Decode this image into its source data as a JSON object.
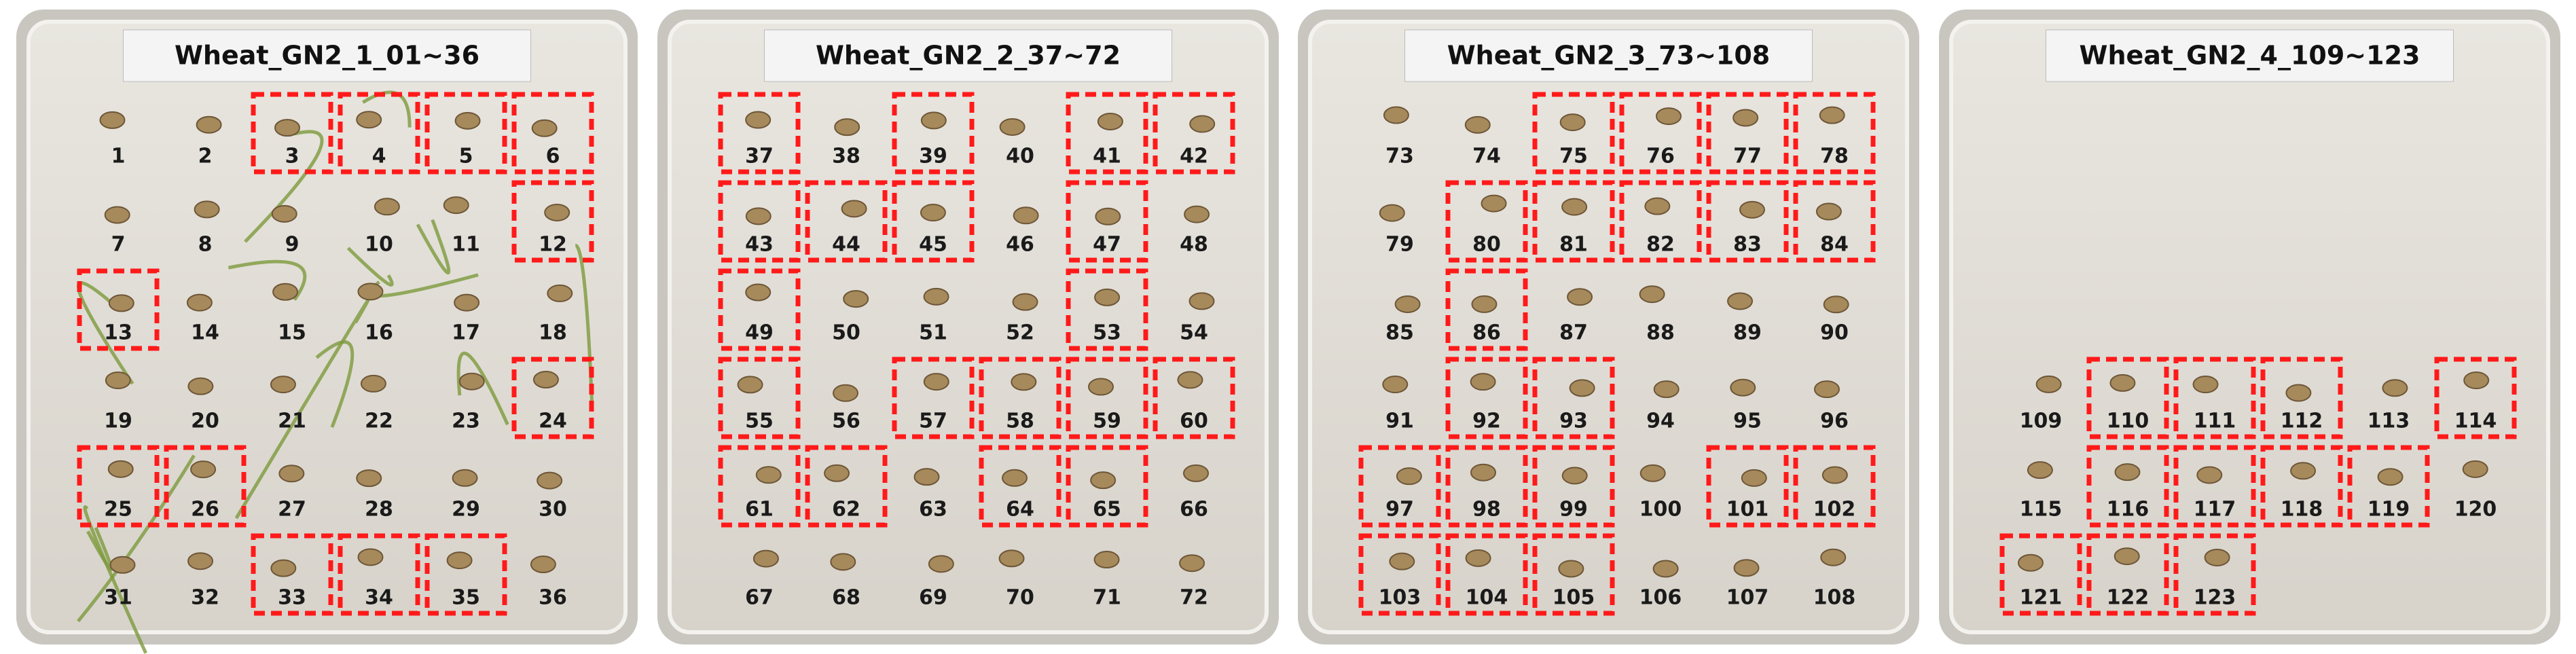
{
  "panels": [
    {
      "title": "Wheat_GN2_1_01~36",
      "cells": [
        {
          "label": 1,
          "marked": false
        },
        {
          "label": 2,
          "marked": false
        },
        {
          "label": 3,
          "marked": true
        },
        {
          "label": 4,
          "marked": true
        },
        {
          "label": 5,
          "marked": true
        },
        {
          "label": 6,
          "marked": true
        },
        {
          "label": 7,
          "marked": false
        },
        {
          "label": 8,
          "marked": false
        },
        {
          "label": 9,
          "marked": false
        },
        {
          "label": 10,
          "marked": false
        },
        {
          "label": 11,
          "marked": false
        },
        {
          "label": 12,
          "marked": true
        },
        {
          "label": 13,
          "marked": true
        },
        {
          "label": 14,
          "marked": false
        },
        {
          "label": 15,
          "marked": false
        },
        {
          "label": 16,
          "marked": false
        },
        {
          "label": 17,
          "marked": false
        },
        {
          "label": 18,
          "marked": false
        },
        {
          "label": 19,
          "marked": false
        },
        {
          "label": 20,
          "marked": false
        },
        {
          "label": 21,
          "marked": false
        },
        {
          "label": 22,
          "marked": false
        },
        {
          "label": 23,
          "marked": false
        },
        {
          "label": 24,
          "marked": true
        },
        {
          "label": 25,
          "marked": true
        },
        {
          "label": 26,
          "marked": true
        },
        {
          "label": 27,
          "marked": false
        },
        {
          "label": 28,
          "marked": false
        },
        {
          "label": 29,
          "marked": false
        },
        {
          "label": 30,
          "marked": false
        },
        {
          "label": 31,
          "marked": false
        },
        {
          "label": 32,
          "marked": false
        },
        {
          "label": 33,
          "marked": true
        },
        {
          "label": 34,
          "marked": true
        },
        {
          "label": 35,
          "marked": true
        },
        {
          "label": 36,
          "marked": false
        }
      ]
    },
    {
      "title": "Wheat_GN2_2_37~72",
      "cells": [
        {
          "label": 37,
          "marked": true
        },
        {
          "label": 38,
          "marked": false
        },
        {
          "label": 39,
          "marked": true
        },
        {
          "label": 40,
          "marked": false
        },
        {
          "label": 41,
          "marked": true
        },
        {
          "label": 42,
          "marked": true
        },
        {
          "label": 43,
          "marked": true
        },
        {
          "label": 44,
          "marked": true
        },
        {
          "label": 45,
          "marked": true
        },
        {
          "label": 46,
          "marked": false
        },
        {
          "label": 47,
          "marked": true
        },
        {
          "label": 48,
          "marked": false
        },
        {
          "label": 49,
          "marked": true
        },
        {
          "label": 50,
          "marked": false
        },
        {
          "label": 51,
          "marked": false
        },
        {
          "label": 52,
          "marked": false
        },
        {
          "label": 53,
          "marked": true
        },
        {
          "label": 54,
          "marked": false
        },
        {
          "label": 55,
          "marked": true
        },
        {
          "label": 56,
          "marked": false
        },
        {
          "label": 57,
          "marked": true
        },
        {
          "label": 58,
          "marked": true
        },
        {
          "label": 59,
          "marked": true
        },
        {
          "label": 60,
          "marked": true
        },
        {
          "label": 61,
          "marked": true
        },
        {
          "label": 62,
          "marked": true
        },
        {
          "label": 63,
          "marked": false
        },
        {
          "label": 64,
          "marked": true
        },
        {
          "label": 65,
          "marked": true
        },
        {
          "label": 66,
          "marked": false
        },
        {
          "label": 67,
          "marked": false
        },
        {
          "label": 68,
          "marked": false
        },
        {
          "label": 69,
          "marked": false
        },
        {
          "label": 70,
          "marked": false
        },
        {
          "label": 71,
          "marked": false
        },
        {
          "label": 72,
          "marked": false
        }
      ]
    },
    {
      "title": "Wheat_GN2_3_73~108",
      "cells": [
        {
          "label": 73,
          "marked": false
        },
        {
          "label": 74,
          "marked": false
        },
        {
          "label": 75,
          "marked": true
        },
        {
          "label": 76,
          "marked": true
        },
        {
          "label": 77,
          "marked": true
        },
        {
          "label": 78,
          "marked": true
        },
        {
          "label": 79,
          "marked": false
        },
        {
          "label": 80,
          "marked": true
        },
        {
          "label": 81,
          "marked": true
        },
        {
          "label": 82,
          "marked": true
        },
        {
          "label": 83,
          "marked": true
        },
        {
          "label": 84,
          "marked": true
        },
        {
          "label": 85,
          "marked": false
        },
        {
          "label": 86,
          "marked": true
        },
        {
          "label": 87,
          "marked": false
        },
        {
          "label": 88,
          "marked": false
        },
        {
          "label": 89,
          "marked": false
        },
        {
          "label": 90,
          "marked": false
        },
        {
          "label": 91,
          "marked": false
        },
        {
          "label": 92,
          "marked": true
        },
        {
          "label": 93,
          "marked": true
        },
        {
          "label": 94,
          "marked": false
        },
        {
          "label": 95,
          "marked": false
        },
        {
          "label": 96,
          "marked": false
        },
        {
          "label": 97,
          "marked": true
        },
        {
          "label": 98,
          "marked": true
        },
        {
          "label": 99,
          "marked": true
        },
        {
          "label": 100,
          "marked": false
        },
        {
          "label": 101,
          "marked": true
        },
        {
          "label": 102,
          "marked": true
        },
        {
          "label": 103,
          "marked": true
        },
        {
          "label": 104,
          "marked": true
        },
        {
          "label": 105,
          "marked": true
        },
        {
          "label": 106,
          "marked": false
        },
        {
          "label": 107,
          "marked": false
        },
        {
          "label": 108,
          "marked": false
        }
      ]
    },
    {
      "title": "Wheat_GN2_4_109~123",
      "cells": [
        {
          "label": 109,
          "marked": false
        },
        {
          "label": 110,
          "marked": true
        },
        {
          "label": 111,
          "marked": true
        },
        {
          "label": 112,
          "marked": true
        },
        {
          "label": 113,
          "marked": false
        },
        {
          "label": 114,
          "marked": true
        },
        {
          "label": 115,
          "marked": false
        },
        {
          "label": 116,
          "marked": true
        },
        {
          "label": 117,
          "marked": true
        },
        {
          "label": 118,
          "marked": true
        },
        {
          "label": 119,
          "marked": true
        },
        {
          "label": 120,
          "marked": false
        },
        {
          "label": 121,
          "marked": true
        },
        {
          "label": 122,
          "marked": true
        },
        {
          "label": 123,
          "marked": true
        }
      ]
    }
  ]
}
